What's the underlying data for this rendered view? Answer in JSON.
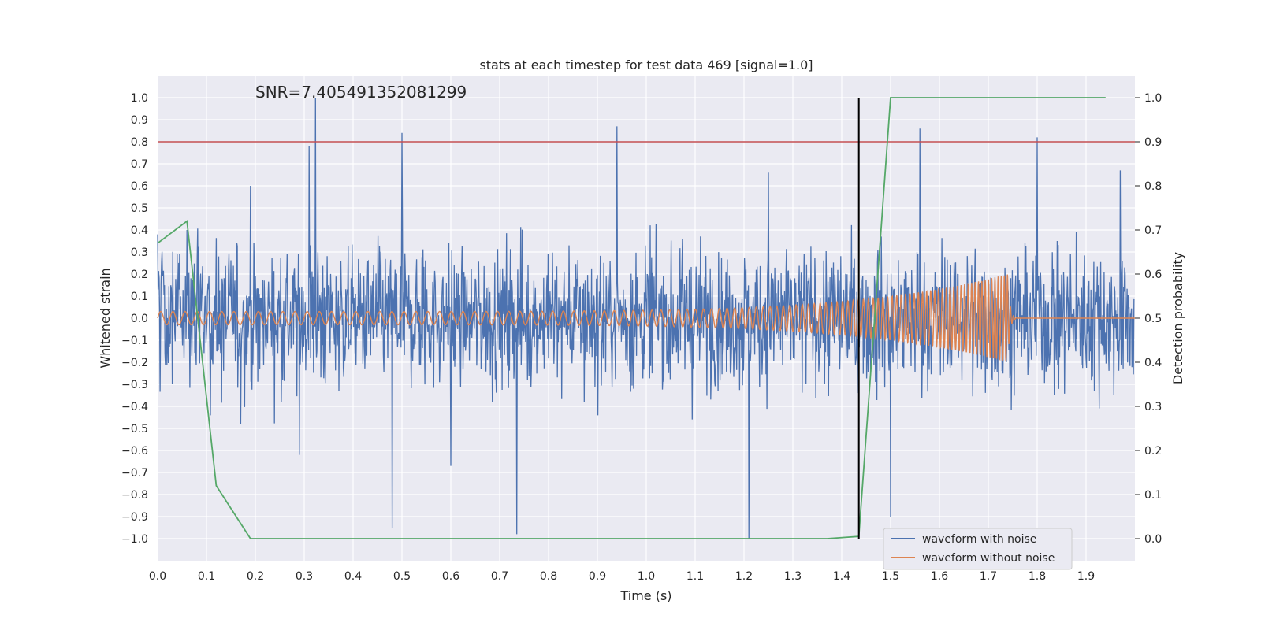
{
  "chart_data": {
    "type": "line",
    "title": "stats at each timestep for test data 469 [signal=1.0]",
    "annotation": "SNR=7.405491352081299",
    "xlabel": "Time (s)",
    "ylabel": "Whitened strain",
    "y2label": "Detection probability",
    "xlim": [
      0.0,
      2.0
    ],
    "ylim": [
      -1.1,
      1.1
    ],
    "y2lim": [
      -0.05,
      1.05
    ],
    "xticks": [
      "0.0",
      "0.1",
      "0.2",
      "0.3",
      "0.4",
      "0.5",
      "0.6",
      "0.7",
      "0.8",
      "0.9",
      "1.0",
      "1.1",
      "1.2",
      "1.3",
      "1.4",
      "1.5",
      "1.6",
      "1.7",
      "1.8",
      "1.9"
    ],
    "yticks": [
      "1.0",
      "0.9",
      "0.8",
      "0.7",
      "0.6",
      "0.5",
      "0.4",
      "0.3",
      "0.2",
      "0.1",
      "0.0",
      "−0.1",
      "−0.2",
      "−0.3",
      "−0.4",
      "−0.5",
      "−0.6",
      "−0.7",
      "−0.8",
      "−0.9",
      "−1.0"
    ],
    "y2ticks": [
      "1.0",
      "0.9",
      "0.8",
      "0.7",
      "0.6",
      "0.5",
      "0.4",
      "0.3",
      "0.2",
      "0.1",
      "0.0"
    ],
    "grid": true,
    "legend_position": "bottom-right",
    "threshold_line": {
      "y": 0.8,
      "color": "#c44e52"
    },
    "marker_line": {
      "x": 1.435,
      "y_range": [
        -1.0,
        1.0
      ],
      "color": "#000000"
    },
    "series": [
      {
        "name": "waveform with noise",
        "color": "#4c72b0",
        "axis": "left",
        "representation": "dense noisy signal",
        "sample_points": [
          [
            0.0,
            0.38
          ],
          [
            0.03,
            -0.3
          ],
          [
            0.06,
            0.4
          ],
          [
            0.17,
            -0.48
          ],
          [
            0.19,
            0.6
          ],
          [
            0.29,
            -0.62
          ],
          [
            0.31,
            0.78
          ],
          [
            0.323,
            1.0
          ],
          [
            0.48,
            -0.95
          ],
          [
            0.5,
            0.84
          ],
          [
            0.6,
            -0.67
          ],
          [
            0.735,
            -0.98
          ],
          [
            0.94,
            0.87
          ],
          [
            1.21,
            -1.0
          ],
          [
            1.25,
            0.66
          ],
          [
            1.5,
            -0.9
          ],
          [
            1.56,
            0.86
          ],
          [
            1.8,
            0.82
          ],
          [
            1.97,
            0.67
          ]
        ],
        "amplitude_range": [
          -1.0,
          1.0
        ]
      },
      {
        "name": "waveform without noise",
        "color": "#dd8452",
        "axis": "left",
        "representation": "chirp",
        "amplitude_start": 0.03,
        "amplitude_end": 0.2,
        "merger_time": 1.74,
        "cycles": 160
      },
      {
        "name": "Detection probability",
        "color": "#55a868",
        "axis": "right",
        "x": [
          0.0,
          0.06,
          0.12,
          0.19,
          0.5,
          1.0,
          1.37,
          1.435,
          1.5,
          1.56,
          1.94
        ],
        "values": [
          0.67,
          0.72,
          0.12,
          0.0,
          0.0,
          0.0,
          0.0,
          0.005,
          1.0,
          1.0,
          1.0
        ]
      }
    ]
  }
}
